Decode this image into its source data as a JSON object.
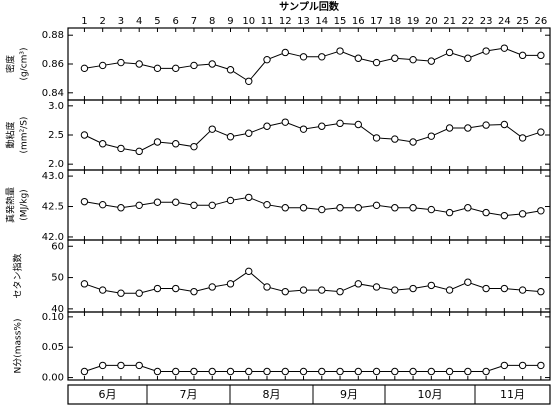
{
  "chart_data": [
    {
      "type": "line",
      "xlabel": "サンプル回数",
      "x": [
        1,
        2,
        3,
        4,
        5,
        6,
        7,
        8,
        9,
        10,
        11,
        12,
        13,
        14,
        15,
        16,
        17,
        18,
        19,
        20,
        21,
        22,
        23,
        24,
        25,
        26
      ],
      "xlim": [
        0.1,
        26.5
      ],
      "ylabel": [
        "密度",
        "(g/cm³)"
      ],
      "ylim": [
        0.835,
        0.885
      ],
      "yticks": [
        0.84,
        0.86,
        0.88
      ],
      "values": [
        0.857,
        0.859,
        0.861,
        0.86,
        0.857,
        0.857,
        0.859,
        0.86,
        0.856,
        0.848,
        0.863,
        0.868,
        0.865,
        0.865,
        0.869,
        0.864,
        0.861,
        0.864,
        0.863,
        0.862,
        0.868,
        0.864,
        0.869,
        0.871,
        0.866,
        0.866
      ]
    },
    {
      "type": "line",
      "ylabel": [
        "動粘度",
        "(mm²/S)"
      ],
      "ylim": [
        1.9,
        3.1
      ],
      "yticks": [
        {
          "value": 2,
          "label": "2.0"
        },
        2.5,
        {
          "value": 3,
          "label": "3.0"
        }
      ],
      "values": [
        2.5,
        2.35,
        2.27,
        2.22,
        2.38,
        2.35,
        2.3,
        2.6,
        2.47,
        2.53,
        2.65,
        2.72,
        2.6,
        2.65,
        2.7,
        2.68,
        2.45,
        2.43,
        2.38,
        2.48,
        2.62,
        2.62,
        2.67,
        2.68,
        2.45,
        2.55
      ]
    },
    {
      "type": "line",
      "ylabel": [
        "真発熱量",
        "(MJ/kg)"
      ],
      "ylim": [
        41.95,
        43.1
      ],
      "yticks": [
        {
          "value": 42,
          "label": "42.0"
        },
        42.5,
        {
          "value": 43,
          "label": "43.0"
        }
      ],
      "values": [
        42.58,
        42.53,
        42.48,
        42.52,
        42.57,
        42.57,
        42.52,
        42.52,
        42.6,
        42.65,
        42.53,
        42.48,
        42.48,
        42.45,
        42.48,
        42.48,
        42.52,
        42.48,
        42.48,
        42.45,
        42.4,
        42.48,
        42.4,
        42.35,
        42.38,
        42.43
      ]
    },
    {
      "type": "line",
      "ylabel": [
        "セタン指数"
      ],
      "ylim": [
        39,
        62
      ],
      "yticks": [
        40,
        50,
        60
      ],
      "values": [
        48,
        46,
        45,
        45,
        46.5,
        46.5,
        45.5,
        47,
        48,
        52,
        47,
        45.5,
        46,
        46,
        45.5,
        48,
        47,
        46,
        46.5,
        47.5,
        46,
        48.5,
        46.5,
        46.5,
        46,
        45.5
      ]
    },
    {
      "type": "line",
      "ylabel": [
        "N分(mass%)"
      ],
      "ylim": [
        -0.004,
        0.108
      ],
      "yticks": [
        {
          "value": 0,
          "label": "0.00"
        },
        0.05,
        {
          "value": 0.1,
          "label": "0.10"
        }
      ],
      "values": [
        0.01,
        0.02,
        0.02,
        0.02,
        0.01,
        0.01,
        0.01,
        0.01,
        0.01,
        0.01,
        0.01,
        0.01,
        0.01,
        0.01,
        0.01,
        0.01,
        0.01,
        0.01,
        0.01,
        0.01,
        0.01,
        0.01,
        0.01,
        0.02,
        0.02,
        0.02
      ],
      "months": [
        "6月",
        "7月",
        "8月",
        "9月",
        "10月",
        "11月"
      ]
    }
  ]
}
